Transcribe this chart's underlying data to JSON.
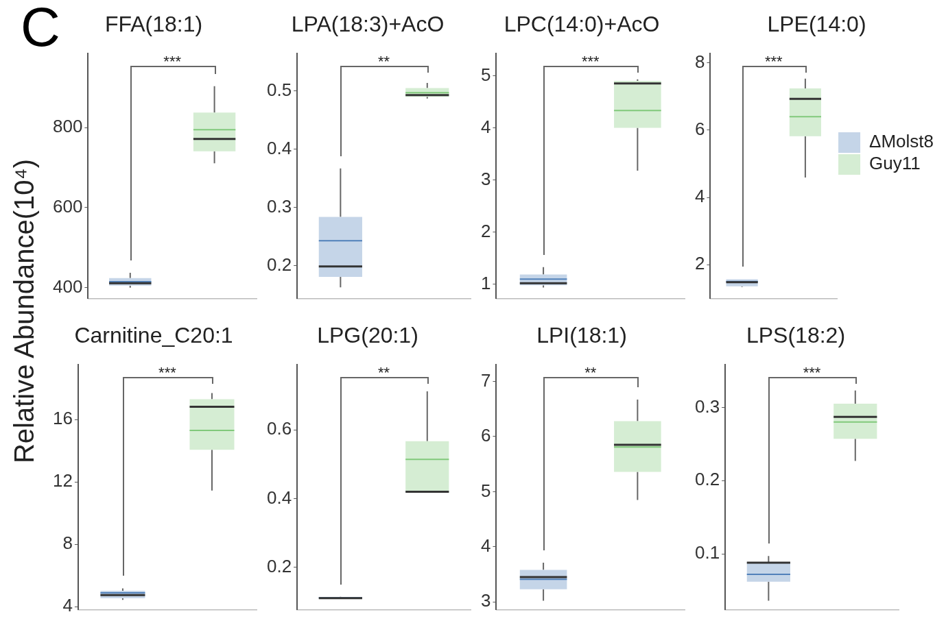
{
  "chart_data": [
    {
      "type": "box",
      "title": "FFA(18:1)",
      "ylabel": "Relative Abundance(10⁴)",
      "annotations": [
        "C",
        "***"
      ],
      "categories": [
        null,
        null
      ],
      "tick_labels": "y",
      "ylim": [
        373,
        985
      ],
      "yticks": [
        400,
        600,
        800
      ],
      "series": [
        {
          "color": "#c5d5e8",
          "boxes": [
            {
              "low": 400,
              "q1": 405,
              "median": 411,
              "q3": 424,
              "high": 437,
              "mean": 415
            },
            null
          ]
        },
        {
          "color": "#d5edd3",
          "boxes": [
            null,
            {
              "low": 711,
              "q1": 741,
              "median": 772,
              "q3": 838,
              "high": 904,
              "mean": 795
            }
          ]
        }
      ]
    },
    {
      "type": "box",
      "title": "LPA(18:3)+AcO",
      "annotations": [
        "**"
      ],
      "categories": [
        null,
        null
      ],
      "tick_labels": "y",
      "ylim": [
        0.144,
        0.564
      ],
      "yticks": [
        0.2,
        0.3,
        0.4,
        0.5
      ],
      "series": [
        {
          "color": "#c5d5e8",
          "boxes": [
            {
              "low": 0.163,
              "q1": 0.181,
              "median": 0.199,
              "q3": 0.284,
              "high": 0.367,
              "mean": 0.243
            },
            null
          ]
        },
        {
          "color": "#d5edd3",
          "boxes": [
            null,
            {
              "low": 0.487,
              "q1": 0.49,
              "median": 0.493,
              "q3": 0.505,
              "high": 0.514,
              "mean": 0.497
            }
          ]
        }
      ]
    },
    {
      "type": "box",
      "title": "LPC(14:0)+AcO",
      "annotations": [
        "***"
      ],
      "categories": [
        null,
        null
      ],
      "tick_labels": "y",
      "ylim": [
        0.73,
        5.42
      ],
      "yticks": [
        1,
        2,
        3,
        4,
        5
      ],
      "series": [
        {
          "color": "#c5d5e8",
          "boxes": [
            {
              "low": 0.94,
              "q1": 0.98,
              "median": 1.02,
              "q3": 1.19,
              "high": 1.33,
              "mean": 1.1
            },
            null
          ]
        },
        {
          "color": "#d5edd3",
          "boxes": [
            null,
            {
              "low": 3.18,
              "q1": 4.0,
              "median": 4.85,
              "q3": 4.9,
              "high": 4.93,
              "mean": 4.33
            }
          ]
        }
      ]
    },
    {
      "type": "box",
      "title": "LPE(14:0)",
      "annotations": [
        "***"
      ],
      "categories": [
        null,
        null
      ],
      "tick_labels": "y",
      "legend": "right",
      "ylim": [
        1.0,
        8.27
      ],
      "yticks": [
        2,
        4,
        6,
        8
      ],
      "series": [
        {
          "name": "ΔMolst8",
          "color": "#c5d5e8",
          "boxes": [
            {
              "low": 1.34,
              "q1": 1.36,
              "median": 1.48,
              "q3": 1.57,
              "high": 1.57,
              "mean": 1.5
            },
            null
          ]
        },
        {
          "name": "Guy11",
          "color": "#d5edd3",
          "boxes": [
            null,
            {
              "low": 4.59,
              "q1": 5.82,
              "median": 6.93,
              "q3": 7.24,
              "high": 7.53,
              "mean": 6.4
            }
          ]
        }
      ]
    },
    {
      "type": "box",
      "title": "Carnitine_C20:1",
      "annotations": [
        "***"
      ],
      "categories": [
        null,
        null
      ],
      "tick_labels": "y",
      "ylim": [
        3.81,
        19.5
      ],
      "yticks": [
        4,
        8,
        12,
        16
      ],
      "series": [
        {
          "color": "#c5d5e8",
          "boxes": [
            {
              "low": 4.43,
              "q1": 4.54,
              "median": 4.74,
              "q3": 5.01,
              "high": 5.17,
              "mean": 4.88
            },
            null
          ]
        },
        {
          "color": "#d5edd3",
          "boxes": [
            null,
            {
              "low": 11.44,
              "q1": 14.06,
              "median": 16.82,
              "q3": 17.3,
              "high": 17.69,
              "mean": 15.3
            }
          ]
        }
      ]
    },
    {
      "type": "box",
      "title": "LPG(20:1)",
      "annotations": [
        "**"
      ],
      "categories": [
        null,
        null
      ],
      "tick_labels": "y",
      "ylim": [
        0.077,
        0.789
      ],
      "yticks": [
        0.2,
        0.4,
        0.6
      ],
      "series": [
        {
          "color": "#c5d5e8",
          "boxes": [
            {
              "low": 0.108,
              "q1": 0.109,
              "median": 0.11,
              "q3": 0.113,
              "high": 0.114,
              "mean": 0.111
            },
            null
          ]
        },
        {
          "color": "#d5edd3",
          "boxes": [
            null,
            {
              "low": 0.418,
              "q1": 0.418,
              "median": 0.42,
              "q3": 0.567,
              "high": 0.712,
              "mean": 0.514
            }
          ]
        }
      ]
    },
    {
      "type": "box",
      "title": "LPI(18:1)",
      "annotations": [
        "**"
      ],
      "categories": [
        null,
        null
      ],
      "tick_labels": "y",
      "ylim": [
        2.86,
        7.3
      ],
      "yticks": [
        3,
        4,
        5,
        6,
        7
      ],
      "series": [
        {
          "color": "#c5d5e8",
          "boxes": [
            {
              "low": 3.02,
              "q1": 3.23,
              "median": 3.45,
              "q3": 3.58,
              "high": 3.71,
              "mean": 3.41
            },
            null
          ]
        },
        {
          "color": "#d5edd3",
          "boxes": [
            null,
            {
              "low": 4.85,
              "q1": 5.36,
              "median": 5.85,
              "q3": 6.28,
              "high": 6.67,
              "mean": 5.81
            }
          ]
        }
      ]
    },
    {
      "type": "box",
      "title": "LPS(18:2)",
      "annotations": [
        "***"
      ],
      "categories": [
        null,
        null
      ],
      "tick_labels": "y",
      "ylim": [
        0.024,
        0.358
      ],
      "yticks": [
        0.1,
        0.2,
        0.3
      ],
      "series": [
        {
          "color": "#c5d5e8",
          "boxes": [
            {
              "low": 0.036,
              "q1": 0.062,
              "median": 0.088,
              "q3": 0.089,
              "high": 0.097,
              "mean": 0.072
            },
            null
          ]
        },
        {
          "color": "#d5edd3",
          "boxes": [
            null,
            {
              "low": 0.227,
              "q1": 0.257,
              "median": 0.287,
              "q3": 0.305,
              "high": 0.323,
              "mean": 0.28
            }
          ]
        }
      ]
    }
  ]
}
